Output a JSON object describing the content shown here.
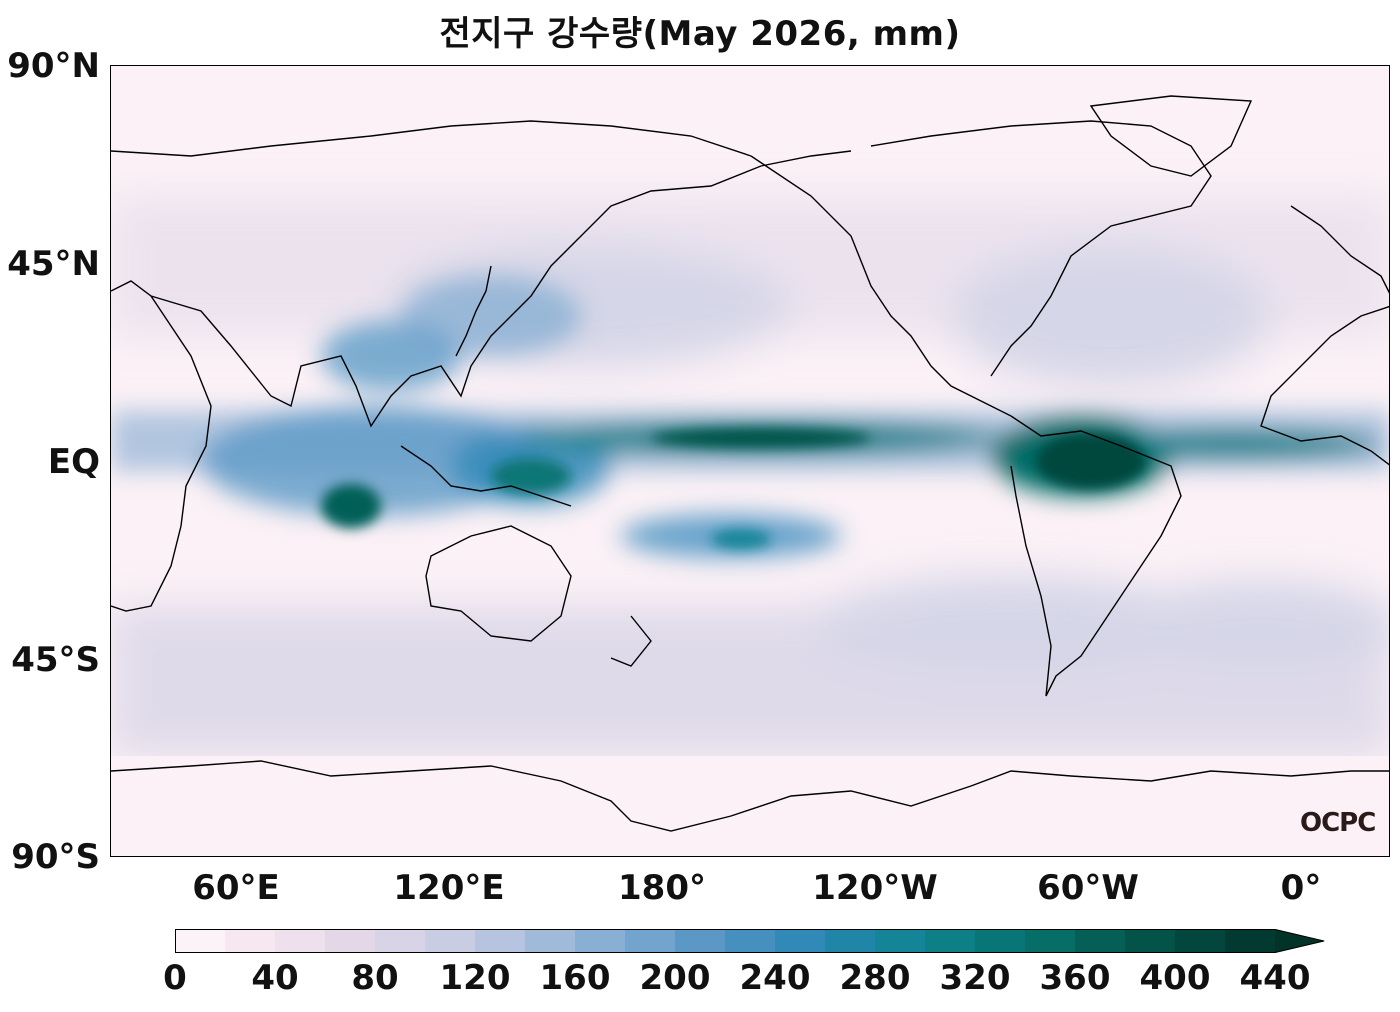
{
  "title": "전지구 강수량(May 2026, mm)",
  "watermark": "OCPC",
  "lat_labels": [
    "90°N",
    "45°N",
    "EQ",
    "45°S",
    "90°S"
  ],
  "lon_labels": [
    "60°E",
    "120°E",
    "180°",
    "120°W",
    "60°W",
    "0°"
  ],
  "colorbar": {
    "ticks": [
      "0",
      "40",
      "80",
      "120",
      "160",
      "200",
      "240",
      "280",
      "320",
      "360",
      "400",
      "440"
    ],
    "extend": "max",
    "colors": [
      "#fcf3f8",
      "#f6e7f0",
      "#eee0ec",
      "#e4d8e8",
      "#d8d3e6",
      "#c9cde3",
      "#b6c4df",
      "#a0bad9",
      "#89afd4",
      "#72a4cd",
      "#5b98c6",
      "#4690c0",
      "#3189b8",
      "#1f86a8",
      "#148597",
      "#0c7f87",
      "#087676",
      "#066d67",
      "#055f57",
      "#045349",
      "#03463d",
      "#023a32",
      "#023329"
    ]
  }
}
